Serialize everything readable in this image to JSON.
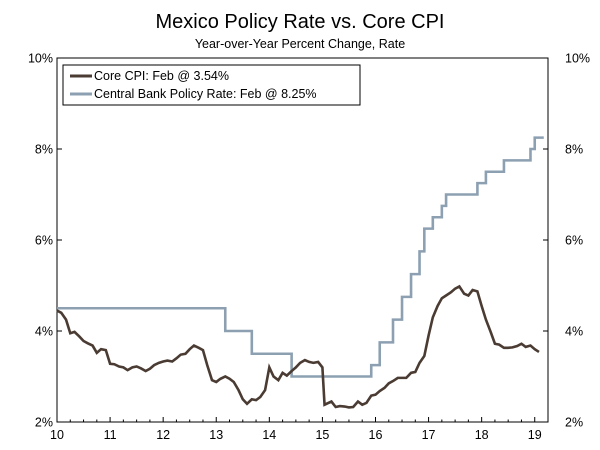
{
  "chart_data": {
    "type": "line",
    "title": "Mexico Policy Rate vs. Core CPI",
    "subtitle": "Year-over-Year Percent Change, Rate",
    "xlabel": "",
    "ylabel": "",
    "xlim": [
      2010,
      2019.25
    ],
    "ylim": [
      2,
      10
    ],
    "x_ticks": [
      2010,
      2011,
      2012,
      2013,
      2014,
      2015,
      2016,
      2017,
      2018,
      2019
    ],
    "x_tick_labels": [
      "10",
      "11",
      "12",
      "13",
      "14",
      "15",
      "16",
      "17",
      "18",
      "19"
    ],
    "y_ticks": [
      2,
      4,
      6,
      8,
      10
    ],
    "y_tick_labels_left": [
      "2%",
      "4%",
      "6%",
      "8%",
      "10%"
    ],
    "y_tick_labels_right": [
      "2%",
      "4%",
      "6%",
      "8%",
      "10%"
    ],
    "legend_position": "top-left",
    "series": [
      {
        "name": "Core CPI: Feb @ 3.54%",
        "color": "#4a3b33",
        "points": [
          [
            2010.0,
            4.45
          ],
          [
            2010.08,
            4.4
          ],
          [
            2010.17,
            4.25
          ],
          [
            2010.25,
            3.95
          ],
          [
            2010.33,
            3.98
          ],
          [
            2010.42,
            3.88
          ],
          [
            2010.5,
            3.78
          ],
          [
            2010.58,
            3.73
          ],
          [
            2010.67,
            3.68
          ],
          [
            2010.75,
            3.52
          ],
          [
            2010.83,
            3.6
          ],
          [
            2010.92,
            3.58
          ],
          [
            2011.0,
            3.28
          ],
          [
            2011.08,
            3.27
          ],
          [
            2011.17,
            3.22
          ],
          [
            2011.25,
            3.2
          ],
          [
            2011.33,
            3.14
          ],
          [
            2011.42,
            3.2
          ],
          [
            2011.5,
            3.22
          ],
          [
            2011.58,
            3.18
          ],
          [
            2011.67,
            3.12
          ],
          [
            2011.75,
            3.17
          ],
          [
            2011.83,
            3.25
          ],
          [
            2011.92,
            3.3
          ],
          [
            2012.0,
            3.33
          ],
          [
            2012.08,
            3.35
          ],
          [
            2012.17,
            3.33
          ],
          [
            2012.25,
            3.4
          ],
          [
            2012.33,
            3.48
          ],
          [
            2012.42,
            3.5
          ],
          [
            2012.5,
            3.6
          ],
          [
            2012.58,
            3.68
          ],
          [
            2012.67,
            3.63
          ],
          [
            2012.75,
            3.58
          ],
          [
            2012.83,
            3.25
          ],
          [
            2012.92,
            2.92
          ],
          [
            2013.0,
            2.88
          ],
          [
            2013.08,
            2.95
          ],
          [
            2013.17,
            3.0
          ],
          [
            2013.25,
            2.95
          ],
          [
            2013.33,
            2.88
          ],
          [
            2013.42,
            2.7
          ],
          [
            2013.5,
            2.5
          ],
          [
            2013.58,
            2.4
          ],
          [
            2013.67,
            2.5
          ],
          [
            2013.75,
            2.48
          ],
          [
            2013.83,
            2.55
          ],
          [
            2013.92,
            2.7
          ],
          [
            2014.0,
            3.2
          ],
          [
            2014.08,
            3.0
          ],
          [
            2014.17,
            2.92
          ],
          [
            2014.25,
            3.08
          ],
          [
            2014.33,
            3.02
          ],
          [
            2014.42,
            3.12
          ],
          [
            2014.5,
            3.2
          ],
          [
            2014.58,
            3.3
          ],
          [
            2014.67,
            3.36
          ],
          [
            2014.75,
            3.32
          ],
          [
            2014.83,
            3.3
          ],
          [
            2014.92,
            3.32
          ],
          [
            2015.0,
            3.2
          ],
          [
            2015.04,
            2.38
          ],
          [
            2015.17,
            2.45
          ],
          [
            2015.25,
            2.33
          ],
          [
            2015.33,
            2.35
          ],
          [
            2015.42,
            2.34
          ],
          [
            2015.5,
            2.32
          ],
          [
            2015.58,
            2.33
          ],
          [
            2015.67,
            2.45
          ],
          [
            2015.75,
            2.38
          ],
          [
            2015.83,
            2.42
          ],
          [
            2015.92,
            2.58
          ],
          [
            2016.0,
            2.6
          ],
          [
            2016.08,
            2.68
          ],
          [
            2016.17,
            2.75
          ],
          [
            2016.25,
            2.85
          ],
          [
            2016.33,
            2.9
          ],
          [
            2016.42,
            2.97
          ],
          [
            2016.5,
            2.97
          ],
          [
            2016.58,
            2.97
          ],
          [
            2016.67,
            3.08
          ],
          [
            2016.75,
            3.1
          ],
          [
            2016.83,
            3.3
          ],
          [
            2016.92,
            3.45
          ],
          [
            2017.0,
            3.9
          ],
          [
            2017.08,
            4.3
          ],
          [
            2017.17,
            4.55
          ],
          [
            2017.25,
            4.72
          ],
          [
            2017.33,
            4.78
          ],
          [
            2017.42,
            4.85
          ],
          [
            2017.5,
            4.93
          ],
          [
            2017.58,
            4.98
          ],
          [
            2017.67,
            4.82
          ],
          [
            2017.75,
            4.78
          ],
          [
            2017.83,
            4.9
          ],
          [
            2017.92,
            4.87
          ],
          [
            2018.0,
            4.55
          ],
          [
            2018.08,
            4.25
          ],
          [
            2018.17,
            3.98
          ],
          [
            2018.25,
            3.72
          ],
          [
            2018.33,
            3.7
          ],
          [
            2018.42,
            3.63
          ],
          [
            2018.5,
            3.63
          ],
          [
            2018.58,
            3.64
          ],
          [
            2018.67,
            3.67
          ],
          [
            2018.75,
            3.72
          ],
          [
            2018.83,
            3.65
          ],
          [
            2018.92,
            3.68
          ],
          [
            2019.0,
            3.6
          ],
          [
            2019.08,
            3.54
          ]
        ]
      },
      {
        "name": "Central Bank Policy Rate: Feb @ 8.25%",
        "color": "#8ca0b2",
        "step": true,
        "points": [
          [
            2010.0,
            4.5
          ],
          [
            2013.17,
            4.5
          ],
          [
            2013.17,
            4.0
          ],
          [
            2013.67,
            4.0
          ],
          [
            2013.67,
            3.5
          ],
          [
            2014.42,
            3.5
          ],
          [
            2014.42,
            3.0
          ],
          [
            2015.92,
            3.0
          ],
          [
            2015.92,
            3.25
          ],
          [
            2016.08,
            3.25
          ],
          [
            2016.08,
            3.75
          ],
          [
            2016.33,
            3.75
          ],
          [
            2016.33,
            4.25
          ],
          [
            2016.5,
            4.25
          ],
          [
            2016.5,
            4.75
          ],
          [
            2016.67,
            4.75
          ],
          [
            2016.67,
            5.25
          ],
          [
            2016.83,
            5.25
          ],
          [
            2016.83,
            5.75
          ],
          [
            2016.92,
            5.75
          ],
          [
            2016.92,
            6.25
          ],
          [
            2017.08,
            6.25
          ],
          [
            2017.08,
            6.5
          ],
          [
            2017.25,
            6.5
          ],
          [
            2017.25,
            6.75
          ],
          [
            2017.33,
            6.75
          ],
          [
            2017.33,
            7.0
          ],
          [
            2017.92,
            7.0
          ],
          [
            2017.92,
            7.25
          ],
          [
            2018.08,
            7.25
          ],
          [
            2018.08,
            7.5
          ],
          [
            2018.42,
            7.5
          ],
          [
            2018.42,
            7.75
          ],
          [
            2018.92,
            7.75
          ],
          [
            2018.92,
            8.0
          ],
          [
            2019.0,
            8.0
          ],
          [
            2019.0,
            8.25
          ],
          [
            2019.17,
            8.25
          ]
        ]
      }
    ]
  }
}
